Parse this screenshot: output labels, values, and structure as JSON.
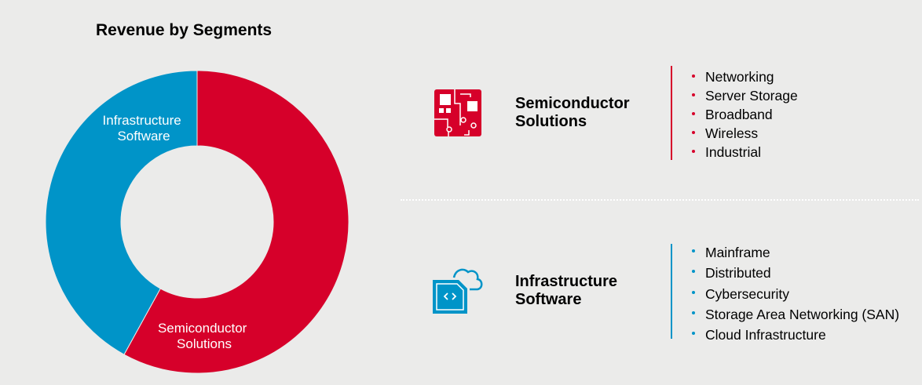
{
  "chart_data": {
    "type": "pie",
    "title": "Revenue by Segments",
    "categories": [
      "Semiconductor Solutions",
      "Infrastructure Software"
    ],
    "values": [
      58,
      42
    ],
    "colors": [
      "#d6002a",
      "#0094c8"
    ],
    "donut": true
  },
  "segments": [
    {
      "title": "Semiconductor Solutions",
      "title_lines": [
        "Semiconductor",
        "Solutions"
      ],
      "icon": "circuit-board-icon",
      "color": "#d6002a",
      "items": [
        "Networking",
        "Server Storage",
        "Broadband",
        "Wireless",
        "Industrial"
      ]
    },
    {
      "title": "Infrastructure Software",
      "title_lines": [
        "Infrastructure",
        "Software"
      ],
      "icon": "cloud-code-icon",
      "color": "#0094c8",
      "items": [
        "Mainframe",
        "Distributed",
        "Cybersecurity",
        "Storage Area Networking (SAN)",
        "Cloud Infrastructure"
      ]
    }
  ],
  "labels": {
    "semi": [
      "Semiconductor",
      "Solutions"
    ],
    "infra": [
      "Infrastructure",
      "Software"
    ]
  }
}
